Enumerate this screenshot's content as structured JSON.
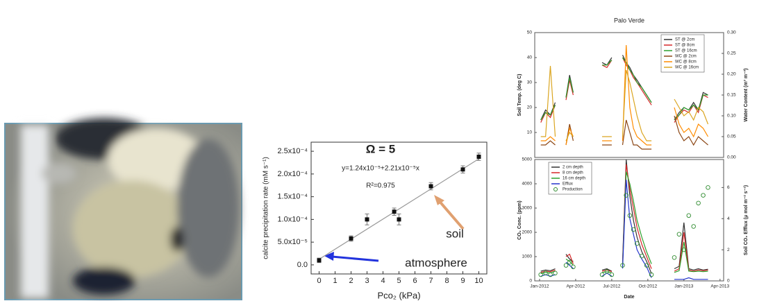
{
  "chart_data": [
    {
      "type": "scatter",
      "xlabel": "Pco₂ (kPa)",
      "ylabel": "calcite precipitation rate (mM s⁻¹)",
      "x": [
        0,
        2,
        3,
        4.7,
        5,
        7,
        9,
        10
      ],
      "values": [
        1e-05,
        5.8e-05,
        0.0001,
        0.000117,
        0.0001,
        0.000173,
        0.00021,
        0.000238
      ],
      "errors": [
        5e-06,
        6e-06,
        1.2e-05,
        8e-06,
        1.2e-05,
        8e-06,
        8e-06,
        8e-06
      ],
      "color": "#111111",
      "fit_line": {
        "x": [
          0,
          10
        ],
        "y": [
          1.24e-05,
          0.0002334
        ],
        "color": "#999999"
      },
      "xlim": [
        -0.5,
        10.5
      ],
      "ylim": [
        -2e-05,
        0.00027
      ],
      "xticks": [
        0,
        1,
        2,
        3,
        4,
        5,
        6,
        7,
        8,
        9,
        10
      ],
      "yticks": [
        {
          "value": 0,
          "label": "0.0"
        },
        {
          "value": 5e-05,
          "label": "5.0x10⁻⁵"
        },
        {
          "value": 0.0001,
          "label": "1.0x10⁻⁴"
        },
        {
          "value": 0.00015,
          "label": "1.5x10⁻⁴"
        },
        {
          "value": 0.0002,
          "label": "2.0x10⁻⁴"
        },
        {
          "value": 0.00025,
          "label": "2.5x10⁻⁴"
        }
      ],
      "annotations": [
        "Ω = 5",
        "y=1.24x10⁻⁵+2.21x10⁻⁵x",
        "R²=0.975",
        "soil",
        "atmosphere"
      ]
    },
    {
      "type": "line",
      "title": "Palo Verde",
      "ylabel": "Soil Temp. (deg C)",
      "y2label": "Water Content (m³ m⁻³)",
      "x": [
        0.1,
        0.5,
        0.9,
        1.3,
        1.7,
        2.2,
        2.5,
        2.8,
        4.0,
        5.2,
        5.6,
        6.0,
        6.4,
        6.9,
        7.2,
        7.5,
        7.8,
        8.1,
        8.5,
        8.9,
        9.3,
        10.2,
        11.2,
        11.6,
        12.0,
        12.4,
        12.8,
        13.2,
        13.6,
        14.0
      ],
      "series": [
        {
          "name": "ST @ 2cm",
          "color": "#333333",
          "values": [
            15,
            19,
            17,
            22,
            null,
            24,
            33,
            26,
            null,
            38,
            37,
            40,
            null,
            41,
            38,
            36,
            33,
            31,
            28,
            25,
            22,
            null,
            15,
            18,
            20,
            19,
            22,
            19,
            26,
            25
          ]
        },
        {
          "name": "ST @ 8cm",
          "color": "#d62728",
          "values": [
            14,
            18,
            16,
            21,
            null,
            23,
            31,
            25,
            null,
            37,
            36,
            39,
            null,
            40,
            37,
            35,
            32,
            30,
            27,
            24,
            21,
            null,
            14,
            17,
            19,
            18,
            21,
            18,
            25,
            24
          ]
        },
        {
          "name": "ST @ 16cm",
          "color": "#2ca02c",
          "values": [
            15,
            18,
            17,
            21,
            null,
            24,
            32,
            26,
            null,
            37,
            37,
            39,
            null,
            40,
            38,
            35,
            33,
            30,
            28,
            25,
            22,
            null,
            15,
            17,
            20,
            19,
            21,
            19,
            25,
            25
          ]
        },
        {
          "name": "WC @ 2cm",
          "color": "#8b4513",
          "axis": "y2",
          "values": [
            0.03,
            0.03,
            0.04,
            0.03,
            null,
            0.03,
            0.08,
            0.04,
            null,
            0.03,
            0.03,
            0.03,
            null,
            0.03,
            0.09,
            0.06,
            0.03,
            0.03,
            0.02,
            0.02,
            0.02,
            null,
            0.1,
            0.06,
            0.04,
            0.05,
            0.03,
            0.05,
            0.04,
            0.03
          ]
        },
        {
          "name": "WC @ 8cm",
          "color": "#ff8c00",
          "axis": "y2",
          "values": [
            0.04,
            0.04,
            0.05,
            0.04,
            null,
            0.03,
            0.07,
            0.05,
            null,
            0.04,
            0.04,
            0.04,
            null,
            0.04,
            0.27,
            0.12,
            0.07,
            0.05,
            0.04,
            0.03,
            0.03,
            null,
            0.12,
            0.08,
            0.06,
            0.07,
            0.05,
            0.08,
            0.07,
            0.05
          ]
        },
        {
          "name": "WC @ 16cm",
          "color": "#daa520",
          "axis": "y2",
          "values": [
            0.05,
            0.05,
            0.22,
            0.05,
            null,
            0.04,
            0.06,
            0.05,
            null,
            0.05,
            0.05,
            0.05,
            null,
            0.05,
            0.21,
            0.18,
            0.14,
            0.1,
            0.06,
            0.04,
            0.04,
            null,
            0.14,
            0.12,
            0.1,
            0.11,
            0.09,
            0.12,
            0.11,
            0.08
          ]
        }
      ],
      "xlim": [
        -0.4,
        15.3
      ],
      "ylim": [
        0,
        50
      ],
      "yticks": [
        10,
        20,
        30,
        40,
        50
      ],
      "y2lim": [
        0,
        0.3
      ],
      "y2ticks": [
        {
          "value": 0,
          "label": "0.00"
        },
        0.05,
        {
          "value": 0.1,
          "label": "0.10"
        },
        0.15,
        {
          "value": 0.2,
          "label": "0.20"
        },
        0.25,
        {
          "value": 0.3,
          "label": "0.30"
        }
      ],
      "legend": "upper right"
    },
    {
      "type": "line",
      "xlabel": "Date",
      "ylabel": "CO₂ Conc. (ppm)",
      "y2label": "Soil CO₂ Efflux (μ mol m⁻² s⁻¹)",
      "x": [
        0.1,
        0.5,
        0.9,
        1.3,
        1.7,
        2.2,
        2.5,
        2.8,
        4.0,
        5.2,
        5.6,
        6.0,
        6.4,
        6.9,
        7.2,
        7.5,
        7.8,
        8.1,
        8.5,
        8.9,
        9.3,
        10.2,
        11.2,
        11.6,
        12.0,
        12.4,
        12.8,
        13.2,
        13.6,
        14.0
      ],
      "series": [
        {
          "name": "2 cm depth",
          "color": "#333333",
          "values": [
            400,
            450,
            420,
            500,
            null,
            1100,
            900,
            800,
            null,
            450,
            500,
            400,
            null,
            800,
            5000,
            3500,
            2500,
            1800,
            1200,
            800,
            300,
            null,
            500,
            600,
            2400,
            500,
            450,
            500,
            450,
            480
          ]
        },
        {
          "name": "8 cm depth",
          "color": "#d62728",
          "values": [
            350,
            400,
            380,
            450,
            null,
            1000,
            1100,
            700,
            null,
            400,
            450,
            380,
            null,
            700,
            4800,
            3800,
            3000,
            2200,
            1500,
            1000,
            500,
            null,
            400,
            500,
            2000,
            450,
            400,
            450,
            420,
            450
          ]
        },
        {
          "name": "16 cm depth",
          "color": "#2ca02c",
          "values": [
            300,
            350,
            330,
            400,
            null,
            900,
            800,
            650,
            null,
            350,
            380,
            330,
            null,
            600,
            4500,
            4000,
            3300,
            2500,
            1800,
            1200,
            700,
            null,
            350,
            420,
            1600,
            400,
            380,
            400,
            380,
            400
          ]
        },
        {
          "name": "Efflux",
          "color": "#2233cc",
          "axis": "y2",
          "values": [
            0.3,
            0.4,
            0.3,
            0.4,
            null,
            1.2,
            1.0,
            0.8,
            null,
            0.3,
            0.5,
            0.3,
            null,
            0.8,
            6.5,
            4.0,
            3.0,
            2.0,
            1.4,
            0.9,
            0.2,
            null,
            0.1,
            0.1,
            0.1,
            0.2,
            0.1,
            0.1,
            0.1,
            0.1
          ]
        },
        {
          "name": "Production",
          "color": "#2e8b2e",
          "axis": "y2",
          "marker": "open-circle",
          "values": [
            0.4,
            0.5,
            0.4,
            0.5,
            null,
            1.0,
            1.2,
            0.9,
            null,
            0.4,
            0.6,
            0.4,
            null,
            1.0,
            5.5,
            4.2,
            3.3,
            2.4,
            1.6,
            1.0,
            0.4,
            null,
            1.5,
            3.0,
            2.0,
            4.2,
            3.5,
            5.0,
            5.5,
            6.0
          ]
        }
      ],
      "xlim": [
        -0.4,
        15.3
      ],
      "xticks": [
        {
          "value": 0,
          "label": "Jan-2012"
        },
        {
          "value": 3,
          "label": "Apr-2012"
        },
        {
          "value": 6,
          "label": "Jul-2012"
        },
        {
          "value": 9,
          "label": "Oct-2012"
        },
        {
          "value": 12,
          "label": "Jan-2013"
        },
        {
          "value": 15,
          "label": "Apr-2013"
        }
      ],
      "ylim": [
        0,
        5000
      ],
      "yticks": [
        0,
        1000,
        2000,
        3000,
        4000,
        5000
      ],
      "y2lim": [
        0,
        7.8
      ],
      "y2ticks": [
        0,
        2,
        4,
        6
      ],
      "legend": "upper left"
    }
  ]
}
